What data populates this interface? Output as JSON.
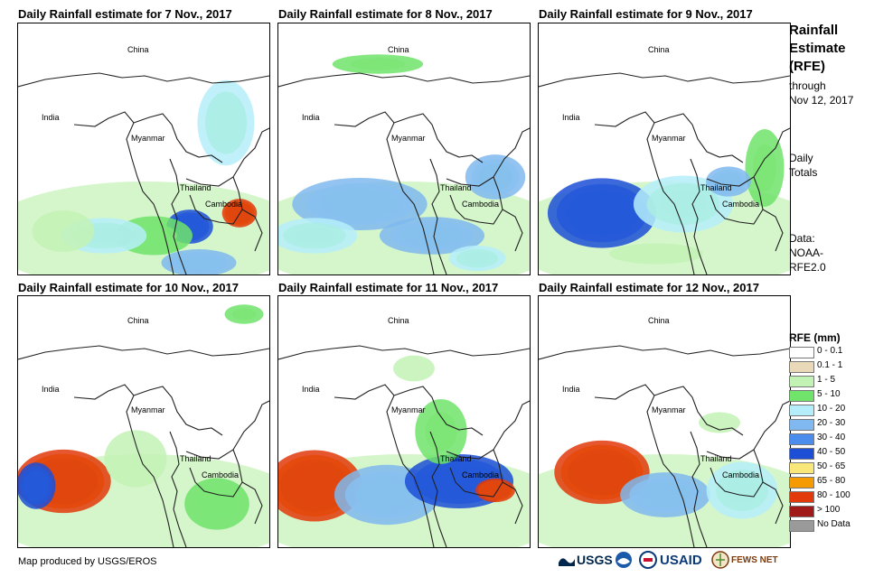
{
  "panels": [
    {
      "title": "Daily Rainfall estimate for 7 Nov., 2017"
    },
    {
      "title": "Daily Rainfall estimate for 8 Nov., 2017"
    },
    {
      "title": "Daily Rainfall estimate for 9 Nov., 2017"
    },
    {
      "title": "Daily Rainfall estimate for 10 Nov., 2017"
    },
    {
      "title": "Daily Rainfall estimate for 11 Nov., 2017"
    },
    {
      "title": "Daily Rainfall estimate for 12 Nov., 2017"
    }
  ],
  "map_labels": {
    "china": "China",
    "india": "India",
    "myanmar": "Myanmar",
    "thailand": "Thailand",
    "cambodia": "Cambodia"
  },
  "side": {
    "title_1": "Rainfall",
    "title_2": "Estimate",
    "title_3": "(RFE)",
    "through": "through",
    "date": "Nov 12, 2017",
    "daily": "Daily",
    "totals": "Totals",
    "data_label": "Data:",
    "source_1": "NOAA-",
    "source_2": "RFE2.0"
  },
  "legend": {
    "title": "RFE (mm)",
    "items": [
      {
        "label": "0 - 0.1",
        "color": "#ffffff"
      },
      {
        "label": "0.1 - 1",
        "color": "#ead9b8"
      },
      {
        "label": "1 - 5",
        "color": "#c3f2b5"
      },
      {
        "label": "5 - 10",
        "color": "#6fe36a"
      },
      {
        "label": "10 - 20",
        "color": "#b5eefa"
      },
      {
        "label": "20 - 30",
        "color": "#7fb9ef"
      },
      {
        "label": "30 - 40",
        "color": "#4a8ded"
      },
      {
        "label": "40 - 50",
        "color": "#1c4fd6"
      },
      {
        "label": "50 - 65",
        "color": "#f9e77a"
      },
      {
        "label": "65 - 80",
        "color": "#f59a00"
      },
      {
        "label": "80 - 100",
        "color": "#e23a0b"
      },
      {
        "label": "> 100",
        "color": "#a11a1a"
      },
      {
        "label": "No Data",
        "color": "#9a9a9a"
      }
    ]
  },
  "credit": "Map produced by USGS/EROS",
  "logos": {
    "usgs": "USGS",
    "usaid": "USAID",
    "fews": "FEWS NET"
  }
}
